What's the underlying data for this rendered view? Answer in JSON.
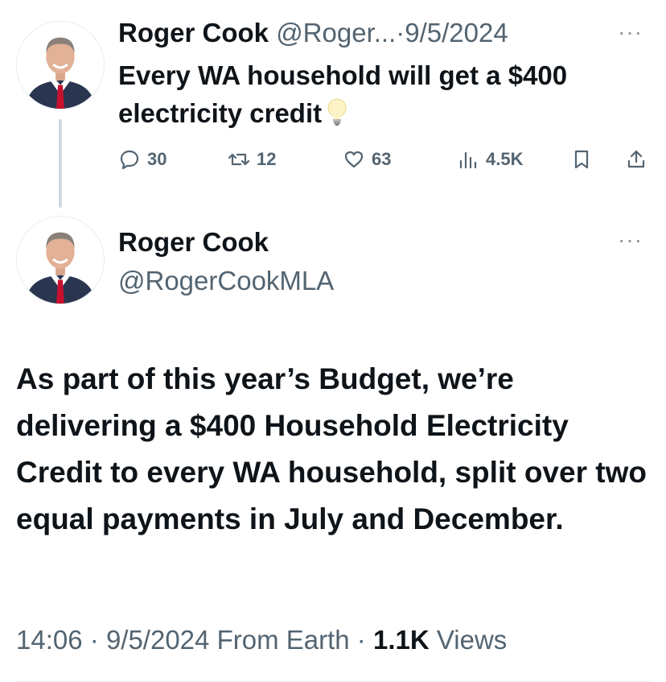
{
  "top_tweet": {
    "author_name": "Roger Cook",
    "author_handle": "@Roger...",
    "separator": "·",
    "date": "9/5/2024",
    "text": "Every WA household will get a $400 electricity credit",
    "emoji_icon": "lightbulb-icon",
    "actions": {
      "replies": "30",
      "reposts": "12",
      "likes": "63",
      "views": "4.5K"
    }
  },
  "main_tweet": {
    "author_name": "Roger Cook",
    "author_handle": "@RogerCookMLA",
    "text": "As part of this year’s Budget, we’re delivering a $400 Household Electricity Credit to every WA household, split over two equal payments in July and December.",
    "meta": {
      "time": "14:06",
      "sep1": "·",
      "date": "9/5/2024",
      "source": "From Earth",
      "sep2": "·",
      "views_count": "1.1K",
      "views_label": "Views"
    }
  },
  "colors": {
    "text_primary": "#0f1419",
    "text_secondary": "#536471",
    "thread_line": "#cfd9de",
    "tie_red": "#c8102e",
    "suit_navy": "#2a3550"
  },
  "more_icon": "more-horizontal-icon"
}
